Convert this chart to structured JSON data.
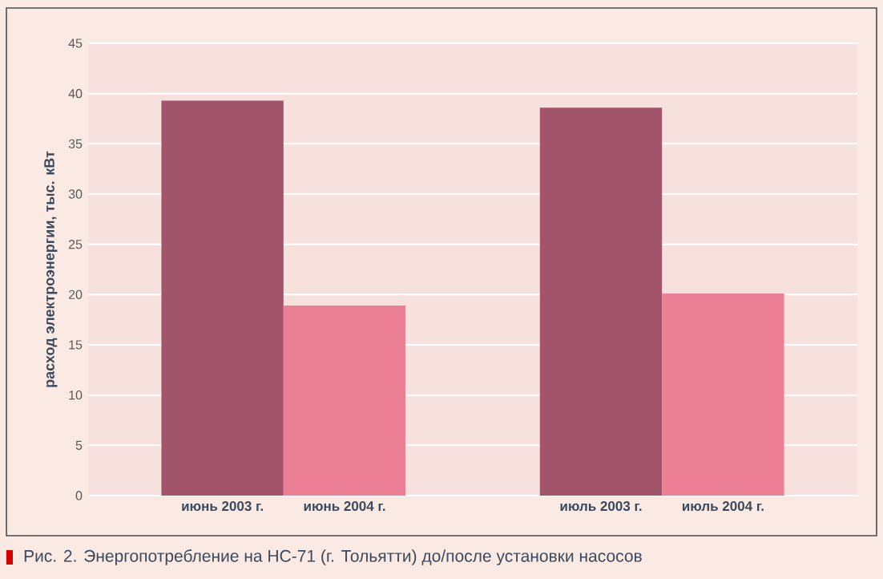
{
  "chart_data": {
    "type": "bar",
    "ylabel": "расход электроэнергии, тыс. кВт",
    "categories": [
      "июнь 2003 г.",
      "июнь 2004 г.",
      "июль 2003 г.",
      "июль 2004 г."
    ],
    "values": [
      39.3,
      18.9,
      38.6,
      20.1
    ],
    "colors": [
      "#a2546a",
      "#eb7f96",
      "#a2546a",
      "#eb7f96"
    ],
    "ylim": [
      0,
      45
    ],
    "yticks": [
      0,
      5,
      10,
      15,
      20,
      25,
      30,
      35,
      40,
      45
    ],
    "grid": "y",
    "annotations": [
      "Рис. 2. Энергопотребление на НС-71 (г. Тольятти) до/после установки насосов"
    ]
  }
}
